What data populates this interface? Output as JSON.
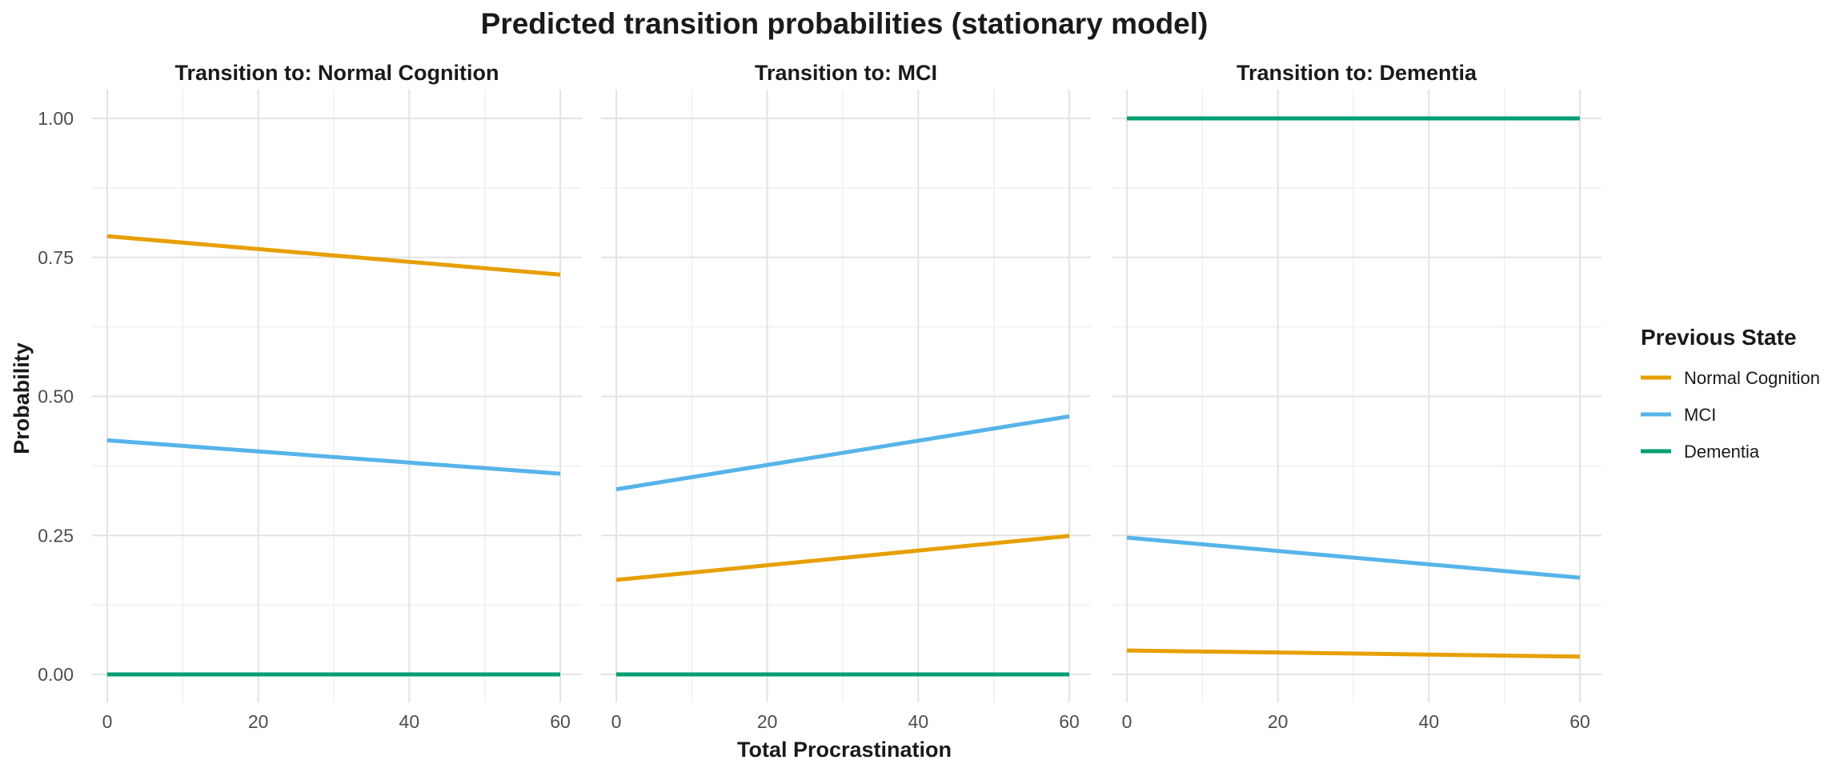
{
  "chart_data": {
    "type": "line",
    "title": "Predicted transition probabilities (stationary model)",
    "xlabel": "Total Procrastination",
    "ylabel": "Probability",
    "xlim": [
      0,
      60
    ],
    "ylim": [
      0,
      1
    ],
    "x_ticks": [
      0,
      20,
      40,
      60
    ],
    "y_ticks": [
      0,
      0.25,
      0.5,
      0.75,
      1.0
    ],
    "x_tick_labels": [
      "0",
      "20",
      "40",
      "60"
    ],
    "y_tick_labels": [
      "0.00",
      "0.25",
      "0.50",
      "0.75",
      "1.00"
    ],
    "grid": true,
    "legend": {
      "title": "Previous State",
      "position": "right",
      "entries": [
        {
          "name": "Normal Cognition",
          "color": "#E69F00"
        },
        {
          "name": "MCI",
          "color": "#56B4E9"
        },
        {
          "name": "Dementia",
          "color": "#009E73"
        }
      ]
    },
    "facets": [
      {
        "strip": "Transition to: Normal Cognition",
        "series": [
          {
            "name": "Normal Cognition",
            "color": "#E69F00",
            "x": [
              0,
              60
            ],
            "y": [
              0.788,
              0.719
            ]
          },
          {
            "name": "MCI",
            "color": "#56B4E9",
            "x": [
              0,
              60
            ],
            "y": [
              0.421,
              0.361
            ]
          },
          {
            "name": "Dementia",
            "color": "#009E73",
            "x": [
              0,
              60
            ],
            "y": [
              0.0,
              0.0
            ]
          }
        ]
      },
      {
        "strip": "Transition to: MCI",
        "series": [
          {
            "name": "Normal Cognition",
            "color": "#E69F00",
            "x": [
              0,
              60
            ],
            "y": [
              0.17,
              0.249
            ]
          },
          {
            "name": "MCI",
            "color": "#56B4E9",
            "x": [
              0,
              60
            ],
            "y": [
              0.333,
              0.464
            ]
          },
          {
            "name": "Dementia",
            "color": "#009E73",
            "x": [
              0,
              60
            ],
            "y": [
              0.0,
              0.0
            ]
          }
        ]
      },
      {
        "strip": "Transition to: Dementia",
        "series": [
          {
            "name": "Normal Cognition",
            "color": "#E69F00",
            "x": [
              0,
              60
            ],
            "y": [
              0.043,
              0.032
            ]
          },
          {
            "name": "MCI",
            "color": "#56B4E9",
            "x": [
              0,
              60
            ],
            "y": [
              0.246,
              0.174
            ]
          },
          {
            "name": "Dementia",
            "color": "#009E73",
            "x": [
              0,
              60
            ],
            "y": [
              1.0,
              1.0
            ]
          }
        ]
      }
    ]
  }
}
